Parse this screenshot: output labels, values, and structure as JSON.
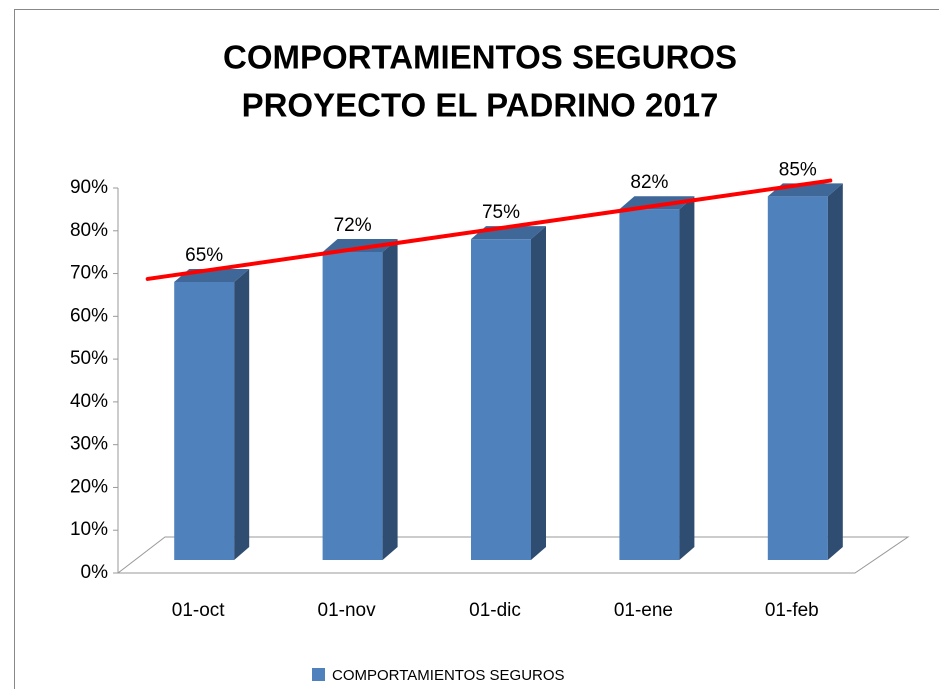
{
  "chart_data": {
    "type": "bar3d",
    "title": [
      "COMPORTAMIENTOS  SEGUROS",
      "PROYECTO  EL PADRINO 2017"
    ],
    "categories": [
      "01-oct",
      "01-nov",
      "01-dic",
      "01-ene",
      "01-feb"
    ],
    "series": [
      {
        "name": "COMPORTAMIENTOS SEGUROS",
        "color": "#4f81bd",
        "values": [
          65,
          72,
          75,
          82,
          85
        ],
        "value_labels": [
          "65%",
          "72%",
          "75%",
          "82%",
          "85%"
        ]
      }
    ],
    "trendline": {
      "color": "#ff0000"
    },
    "ylim": [
      0,
      90
    ],
    "yticks": [
      {
        "value": 0,
        "label": "0%"
      },
      {
        "value": 10,
        "label": "10%"
      },
      {
        "value": 20,
        "label": "20%"
      },
      {
        "value": 30,
        "label": "30%"
      },
      {
        "value": 40,
        "label": "40%"
      },
      {
        "value": 50,
        "label": "50%"
      },
      {
        "value": 60,
        "label": "60%"
      },
      {
        "value": 70,
        "label": "70%"
      },
      {
        "value": 80,
        "label": "80%"
      },
      {
        "value": 90,
        "label": "90%"
      }
    ],
    "legend": "bottom"
  }
}
